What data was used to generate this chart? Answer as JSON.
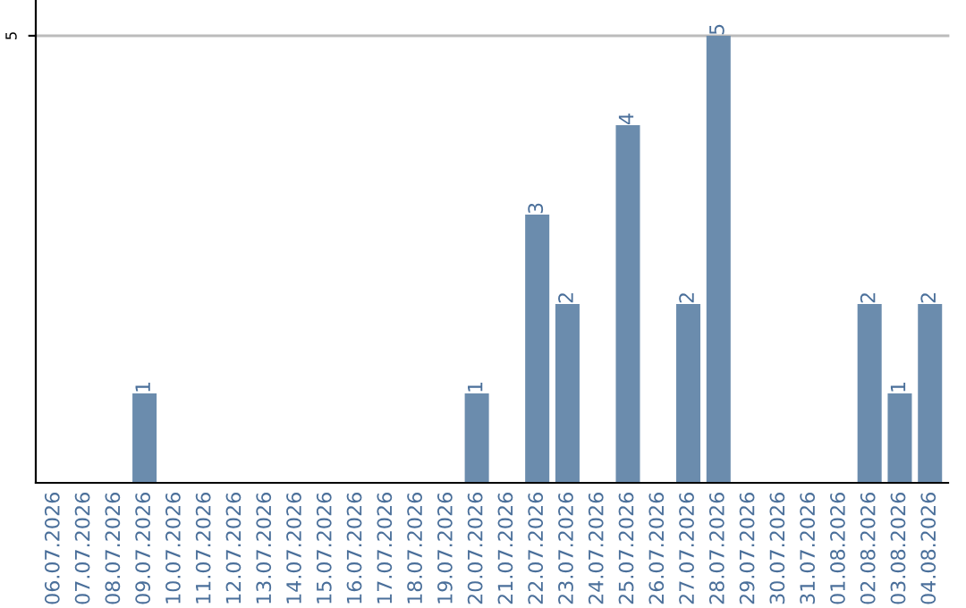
{
  "chart_data": {
    "type": "bar",
    "categories": [
      "06.07.2026",
      "07.07.2026",
      "08.07.2026",
      "09.07.2026",
      "10.07.2026",
      "11.07.2026",
      "12.07.2026",
      "13.07.2026",
      "14.07.2026",
      "15.07.2026",
      "16.07.2026",
      "17.07.2026",
      "18.07.2026",
      "19.07.2026",
      "20.07.2026",
      "21.07.2026",
      "22.07.2026",
      "23.07.2026",
      "24.07.2026",
      "25.07.2026",
      "26.07.2026",
      "27.07.2026",
      "28.07.2026",
      "29.07.2026",
      "30.07.2026",
      "31.07.2026",
      "01.08.2026",
      "02.08.2026",
      "03.08.2026",
      "04.08.2026"
    ],
    "values": [
      0,
      0,
      0,
      1,
      0,
      0,
      0,
      0,
      0,
      0,
      0,
      0,
      0,
      0,
      1,
      0,
      3,
      2,
      0,
      4,
      0,
      2,
      5,
      0,
      0,
      0,
      0,
      2,
      1,
      2
    ],
    "value_labels": [
      null,
      null,
      null,
      "1",
      null,
      null,
      null,
      null,
      null,
      null,
      null,
      null,
      null,
      null,
      "1",
      null,
      "3",
      "2",
      null,
      "4",
      null,
      "2",
      "5",
      null,
      null,
      null,
      null,
      "2",
      "1",
      "2"
    ],
    "color": "#6b8cad",
    "ylim": [
      0,
      5.4
    ],
    "yticks": [
      5
    ],
    "grid": "y"
  }
}
